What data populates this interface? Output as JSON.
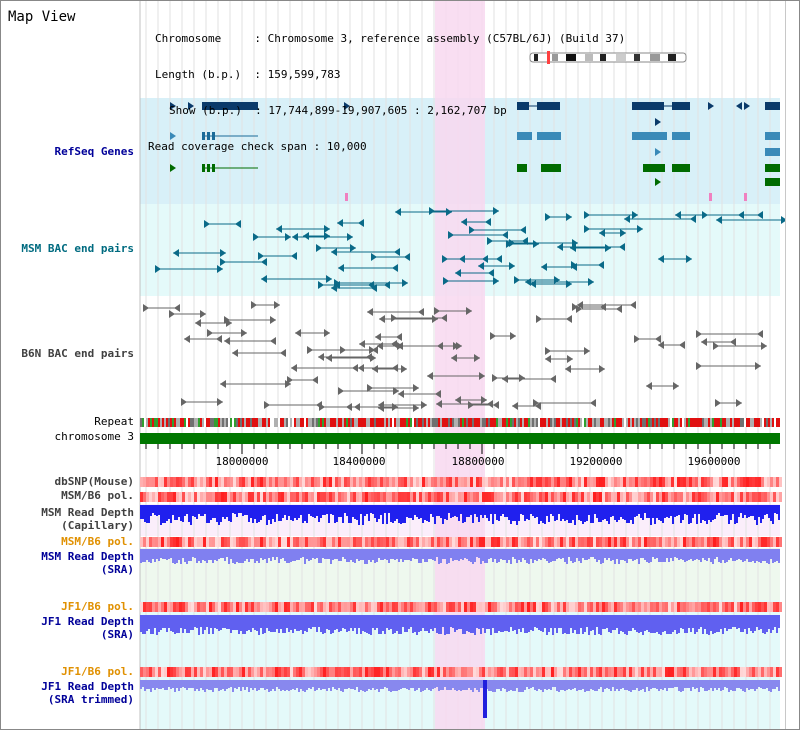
{
  "title": "Map View",
  "info": {
    "chromosome_key": "Chromosome",
    "chromosome_value": "Chromosome 3, reference assembly (C57BL/6J) (Build 37)",
    "length_key": "Length (b.p.)",
    "length_value": "159,599,783",
    "show_key": "Show (b.p.)",
    "show_value": "17,744,899-19,907,605 : 2,162,707 bp",
    "coverage_key": "Read coverage check span",
    "coverage_value": "10,000"
  },
  "tracks": {
    "refseq": "RefSeq Genes",
    "msm_bac": "MSM BAC end pairs",
    "b6n_bac": "B6N BAC end pairs",
    "repeat": "Repeat",
    "chromosome": "chromosome 3",
    "dbsnp": "dbSNP(Mouse)",
    "msm_b6_pol_1": "MSM/B6 pol.",
    "msm_depth_cap_1": "MSM Read Depth",
    "msm_depth_cap_2": "(Capillary)",
    "msm_b6_pol_2": "MSM/B6 pol.",
    "msm_depth_sra_1": "MSM Read Depth",
    "msm_depth_sra_2": "(SRA)",
    "jf1_b6_pol_1": "JF1/B6 pol.",
    "jf1_depth_sra_1": "JF1 Read Depth",
    "jf1_depth_sra_2": "(SRA)",
    "jf1_b6_pol_2": "JF1/B6 pol.",
    "jf1_depth_trim_1": "JF1 Read Depth",
    "jf1_depth_trim_2": "(SRA trimmed)"
  },
  "axis": {
    "ticks": [
      "18000000",
      "18400000",
      "18800000",
      "19200000",
      "19600000"
    ]
  },
  "colors": {
    "refseq_label": "#000099",
    "msm_label": "#006b80",
    "pol_label": "#e09000",
    "depth_label": "#000099",
    "refseq_bg": "#d8f0f8",
    "msm_bg": "#e4fafa",
    "highlight": "#f8d8f0",
    "chromosome_bar": "#007700"
  }
}
